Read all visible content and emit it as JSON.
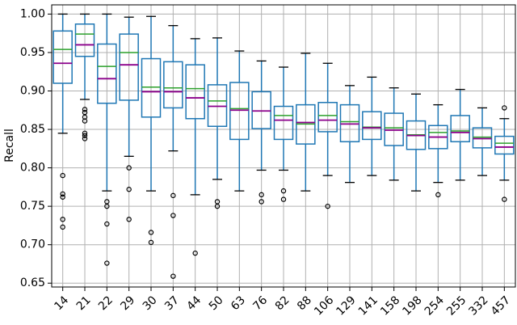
{
  "chart_data": {
    "type": "boxplot",
    "title": "",
    "xlabel": "",
    "ylabel": "Recall",
    "ylim": [
      0.645,
      1.012
    ],
    "y_ticks": [
      "0.65",
      "0.70",
      "0.75",
      "0.80",
      "0.85",
      "0.90",
      "0.95",
      "1.00"
    ],
    "grid": true,
    "categories": [
      "14",
      "21",
      "22",
      "29",
      "30",
      "37",
      "44",
      "50",
      "63",
      "76",
      "82",
      "88",
      "106",
      "129",
      "141",
      "158",
      "198",
      "254",
      "255",
      "332",
      "457"
    ],
    "boxes": [
      {
        "wlo": 0.845,
        "q1": 0.91,
        "median": 0.936,
        "mean": 0.954,
        "q3": 0.978,
        "whi": 1.0,
        "outliers": [
          0.79,
          0.766,
          0.762,
          0.733,
          0.723
        ]
      },
      {
        "wlo": 0.889,
        "q1": 0.945,
        "median": 0.96,
        "mean": 0.974,
        "q3": 0.987,
        "whi": 1.0,
        "outliers": [
          0.876,
          0.872,
          0.866,
          0.861,
          0.845,
          0.842,
          0.838
        ]
      },
      {
        "wlo": 0.77,
        "q1": 0.884,
        "median": 0.916,
        "mean": 0.932,
        "q3": 0.961,
        "whi": 1.0,
        "outliers": [
          0.756,
          0.75,
          0.727,
          0.676
        ]
      },
      {
        "wlo": 0.815,
        "q1": 0.888,
        "median": 0.934,
        "mean": 0.95,
        "q3": 0.974,
        "whi": 0.996,
        "outliers": [
          0.8,
          0.772,
          0.733
        ]
      },
      {
        "wlo": 0.77,
        "q1": 0.866,
        "median": 0.899,
        "mean": 0.905,
        "q3": 0.942,
        "whi": 0.997,
        "outliers": [
          0.716,
          0.703
        ]
      },
      {
        "wlo": 0.822,
        "q1": 0.878,
        "median": 0.899,
        "mean": 0.904,
        "q3": 0.938,
        "whi": 0.985,
        "outliers": [
          0.764,
          0.738,
          0.659
        ]
      },
      {
        "wlo": 0.765,
        "q1": 0.864,
        "median": 0.891,
        "mean": 0.903,
        "q3": 0.934,
        "whi": 0.968,
        "outliers": [
          0.689
        ]
      },
      {
        "wlo": 0.785,
        "q1": 0.854,
        "median": 0.88,
        "mean": 0.887,
        "q3": 0.908,
        "whi": 0.969,
        "outliers": [
          0.756,
          0.75
        ]
      },
      {
        "wlo": 0.77,
        "q1": 0.837,
        "median": 0.875,
        "mean": 0.877,
        "q3": 0.911,
        "whi": 0.952,
        "outliers": []
      },
      {
        "wlo": 0.797,
        "q1": 0.851,
        "median": 0.874,
        "mean": 0.874,
        "q3": 0.899,
        "whi": 0.939,
        "outliers": [
          0.765,
          0.756
        ]
      },
      {
        "wlo": 0.797,
        "q1": 0.837,
        "median": 0.862,
        "mean": 0.868,
        "q3": 0.88,
        "whi": 0.931,
        "outliers": [
          0.77,
          0.759
        ]
      },
      {
        "wlo": 0.77,
        "q1": 0.831,
        "median": 0.859,
        "mean": 0.857,
        "q3": 0.882,
        "whi": 0.949,
        "outliers": []
      },
      {
        "wlo": 0.79,
        "q1": 0.847,
        "median": 0.862,
        "mean": 0.868,
        "q3": 0.885,
        "whi": 0.936,
        "outliers": [
          0.75
        ]
      },
      {
        "wlo": 0.781,
        "q1": 0.834,
        "median": 0.857,
        "mean": 0.86,
        "q3": 0.882,
        "whi": 0.907,
        "outliers": []
      },
      {
        "wlo": 0.79,
        "q1": 0.837,
        "median": 0.852,
        "mean": 0.853,
        "q3": 0.873,
        "whi": 0.918,
        "outliers": []
      },
      {
        "wlo": 0.784,
        "q1": 0.829,
        "median": 0.849,
        "mean": 0.852,
        "q3": 0.871,
        "whi": 0.904,
        "outliers": []
      },
      {
        "wlo": 0.77,
        "q1": 0.824,
        "median": 0.842,
        "mean": 0.843,
        "q3": 0.861,
        "whi": 0.896,
        "outliers": []
      },
      {
        "wlo": 0.781,
        "q1": 0.825,
        "median": 0.84,
        "mean": 0.846,
        "q3": 0.855,
        "whi": 0.882,
        "outliers": [
          0.765
        ]
      },
      {
        "wlo": 0.784,
        "q1": 0.834,
        "median": 0.846,
        "mean": 0.848,
        "q3": 0.868,
        "whi": 0.902,
        "outliers": []
      },
      {
        "wlo": 0.79,
        "q1": 0.826,
        "median": 0.838,
        "mean": 0.84,
        "q3": 0.852,
        "whi": 0.878,
        "outliers": []
      },
      {
        "wlo": 0.784,
        "q1": 0.818,
        "median": 0.827,
        "mean": 0.832,
        "q3": 0.841,
        "whi": 0.864,
        "outliers": [
          0.878,
          0.759
        ]
      }
    ],
    "colors": {
      "box": "#1f77b4",
      "median": "#8b008b",
      "mean": "#2ca02c",
      "grid": "#b0b0b0",
      "axis": "#000000",
      "outlier_edge": "#000000"
    }
  }
}
